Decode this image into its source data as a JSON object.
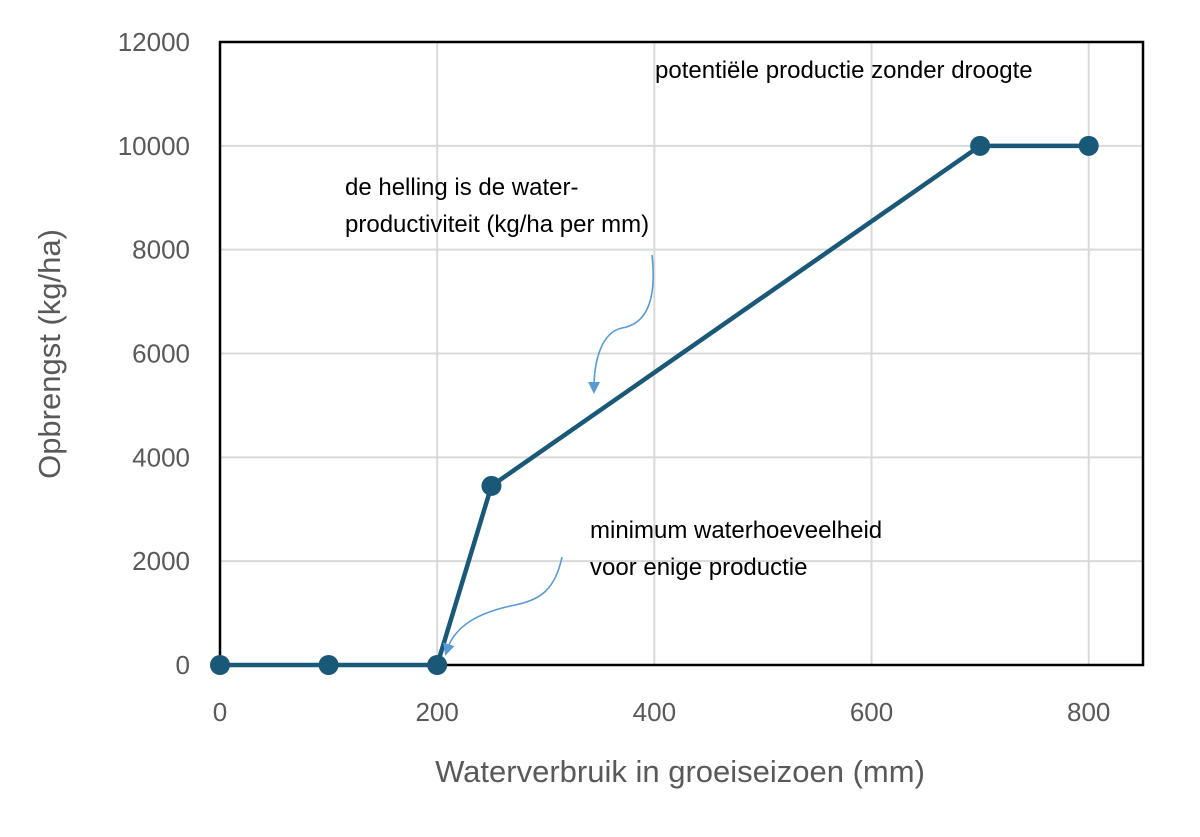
{
  "chart_data": {
    "type": "line",
    "xlabel": "Waterverbruik in groeiseizoen (mm)",
    "ylabel": "Opbrengst (kg/ha)",
    "xlim": [
      0,
      850
    ],
    "ylim": [
      0,
      12000
    ],
    "x_ticks": [
      "0",
      "200",
      "400",
      "600",
      "800"
    ],
    "y_ticks": [
      "0",
      "2000",
      "4000",
      "6000",
      "8000",
      "10000",
      "12000"
    ],
    "grid": true,
    "series": [
      {
        "x": [
          0,
          100,
          200,
          250,
          700,
          800
        ],
        "y": [
          0,
          0,
          0,
          3450,
          10000,
          10000
        ]
      }
    ],
    "annotations": {
      "potential": "potentiële productie zonder droogte",
      "slope_line1": "de helling is de water-",
      "slope_line2": "productiviteit (kg/ha per mm)",
      "minimum_line1": "minimum waterhoeveelheid",
      "minimum_line2": "voor enige productie"
    },
    "colors": {
      "line": "#1a5878",
      "grid": "#d9d9d9",
      "tick_text": "#595959",
      "arrow": "#5b9bd5",
      "frame": "#000000"
    }
  }
}
